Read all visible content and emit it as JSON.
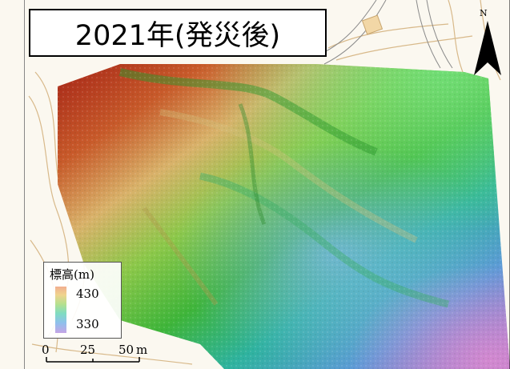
{
  "title": "2021年(発災後)",
  "north_label": "N",
  "legend": {
    "title": "標高(m)",
    "high": "430",
    "low": "330",
    "colors": [
      "#f1ae8f",
      "#f0d48e",
      "#b5e08e",
      "#7fdcc1",
      "#8ec0ec",
      "#c4a5e6"
    ]
  },
  "scale_bar": {
    "ticks": [
      "0",
      "25",
      "50"
    ],
    "unit": "m"
  },
  "map_colors": {
    "high": "#a11c14",
    "mid_high": "#d9a84a",
    "mid": "#46c13a",
    "low": "#2fb8a0",
    "lowest": "#8f7fd6",
    "background": "#fbf8f0",
    "contour": "#d8b98a"
  }
}
